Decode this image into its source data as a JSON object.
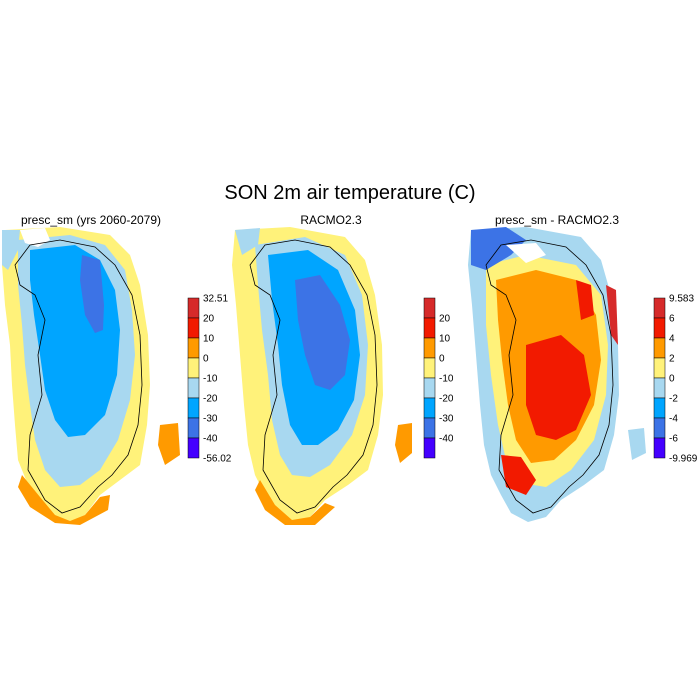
{
  "figure": {
    "title": "SON 2m air temperature (C)"
  },
  "panels": [
    {
      "title": "presc_sm (yrs 2060-2079)",
      "colorbar": {
        "labels": [
          "32.51",
          "20",
          "10",
          "0",
          "-10",
          "-20",
          "-30",
          "-40",
          "-56.02"
        ],
        "colors": [
          "#d62a2a",
          "#f21a00",
          "#ff9a00",
          "#fff27a",
          "#a8d8f0",
          "#00a5ff",
          "#3c73e6",
          "#4400ff"
        ]
      }
    },
    {
      "title": "RACMO2.3",
      "colorbar": {
        "labels": [
          "20",
          "10",
          "0",
          "-10",
          "-20",
          "-30",
          "-40"
        ],
        "colors": [
          "#d62a2a",
          "#f21a00",
          "#ff9a00",
          "#fff27a",
          "#a8d8f0",
          "#00a5ff",
          "#3c73e6",
          "#4400ff"
        ]
      }
    },
    {
      "title": "presc_sm - RACMO2.3",
      "colorbar": {
        "labels": [
          "9.583",
          "6",
          "4",
          "2",
          "0",
          "-2",
          "-4",
          "-6",
          "-9.969"
        ],
        "colors": [
          "#d62a2a",
          "#f21a00",
          "#ff9a00",
          "#fff27a",
          "#a8d8f0",
          "#00a5ff",
          "#3c73e6",
          "#4400ff"
        ]
      }
    }
  ]
}
